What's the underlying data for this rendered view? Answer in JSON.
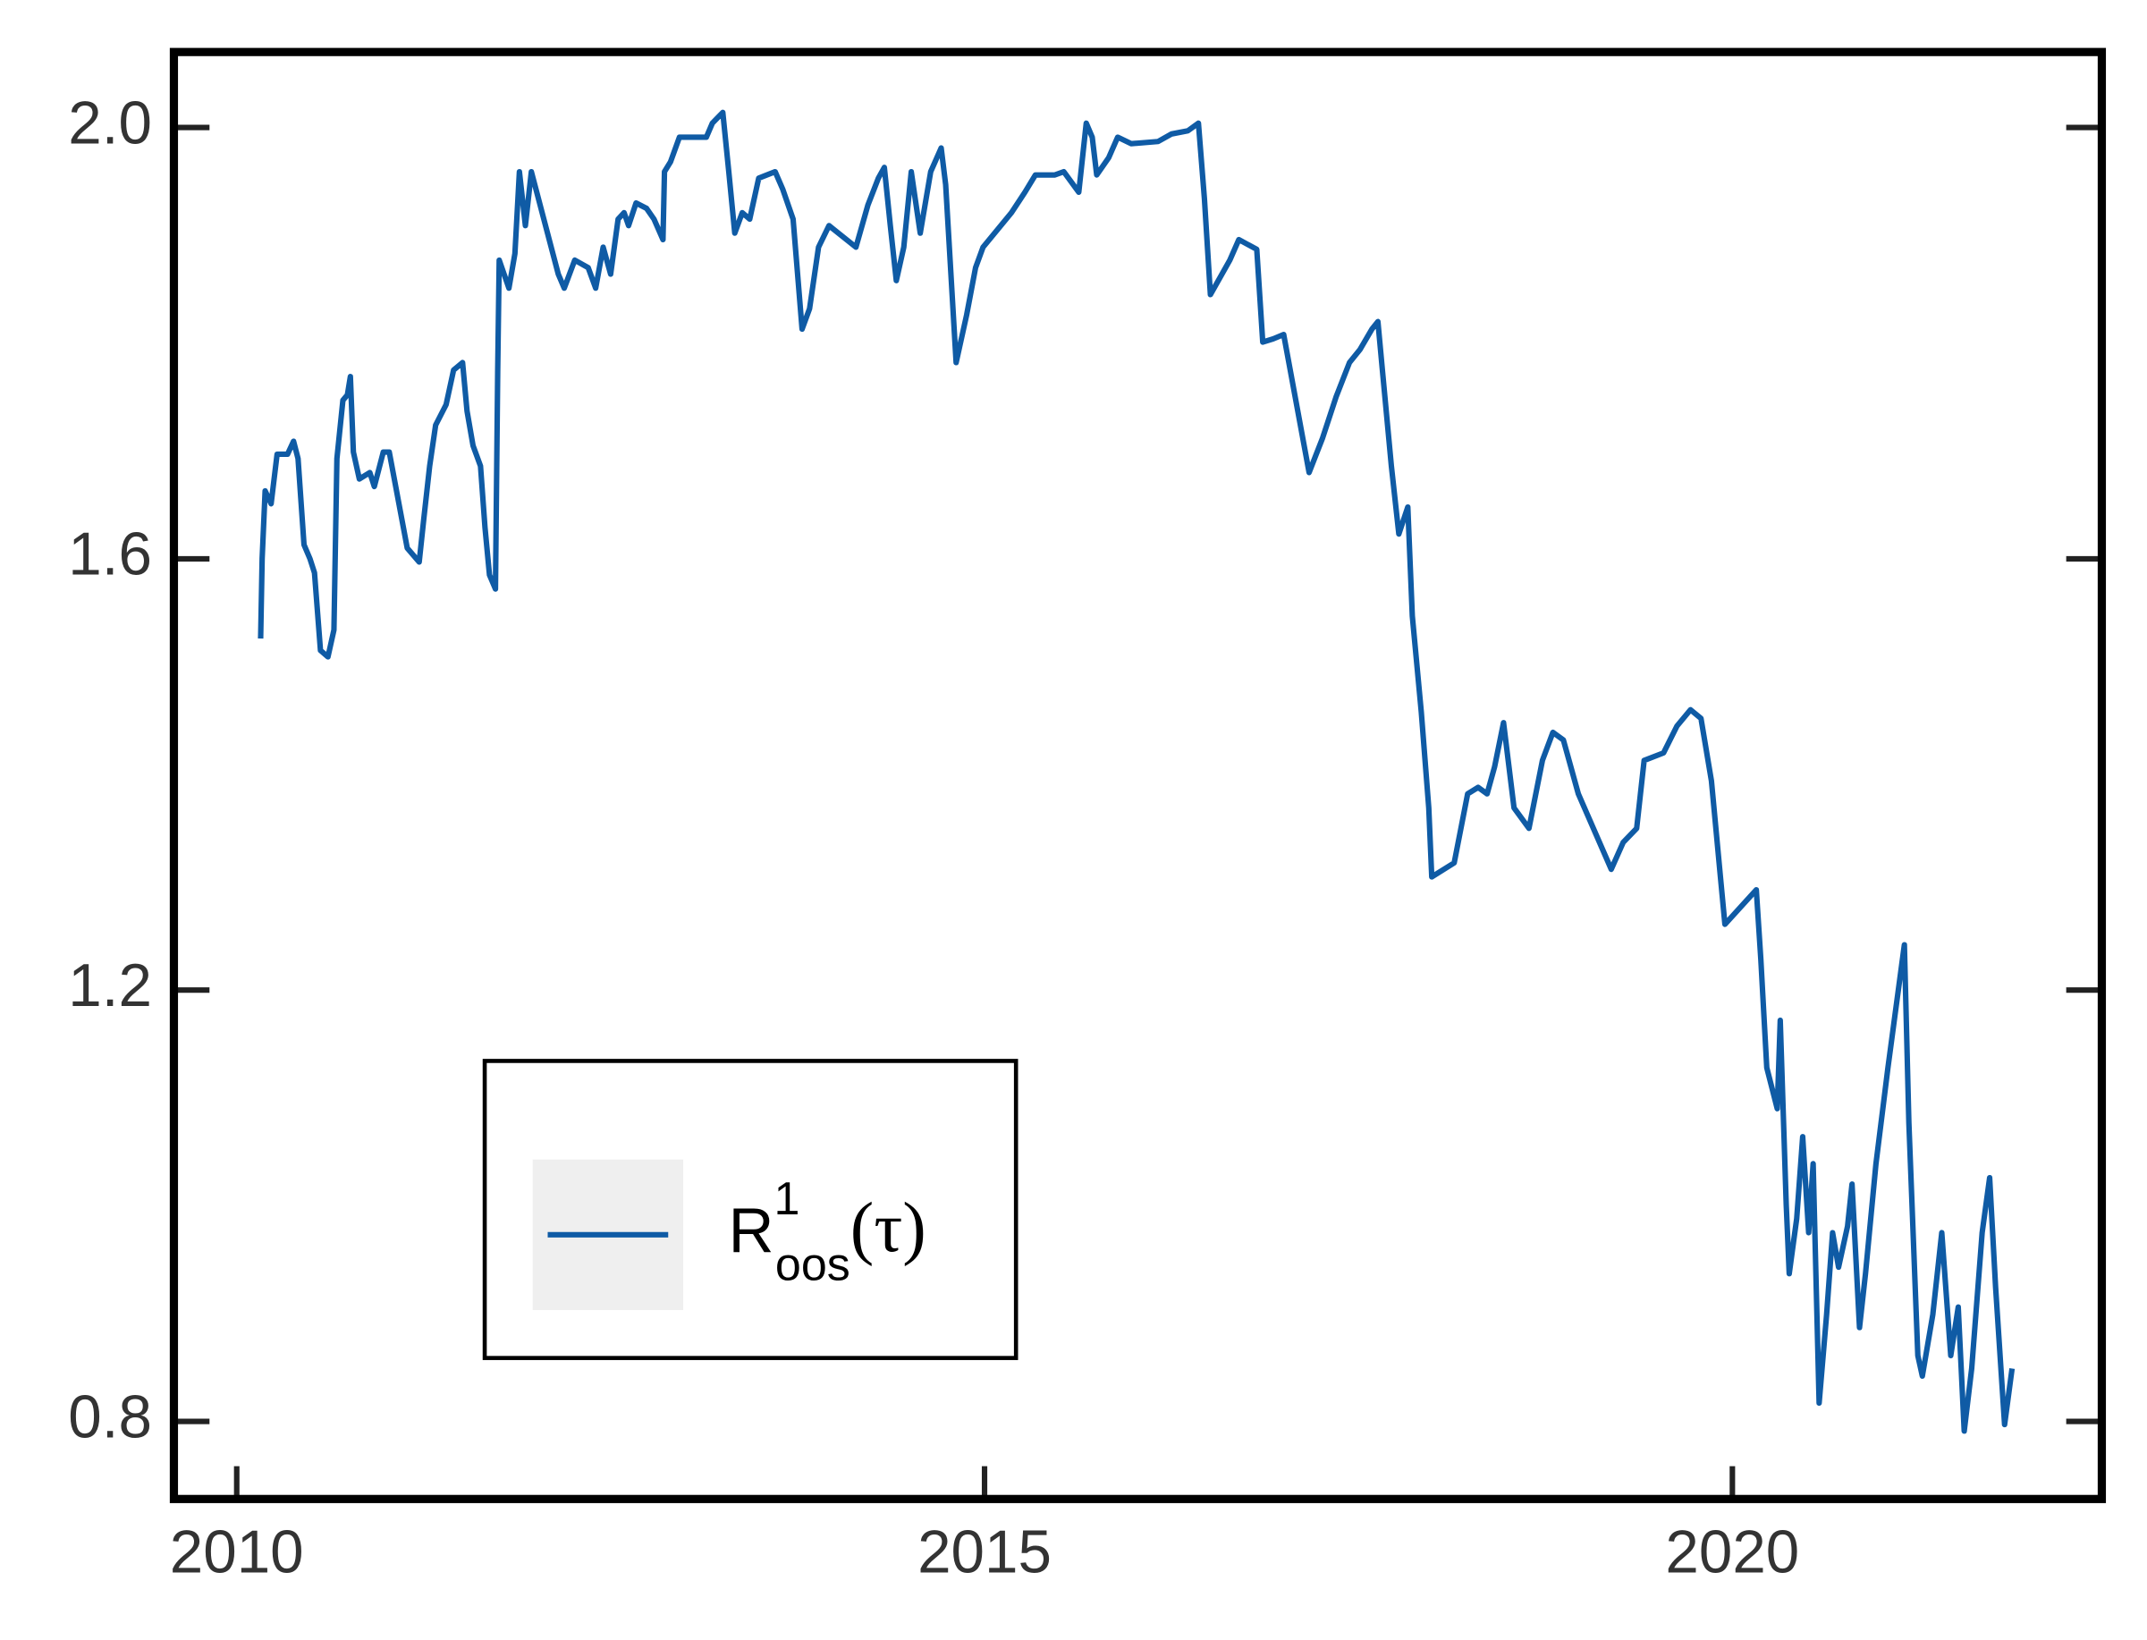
{
  "chart_data": {
    "type": "line",
    "x": [
      2010.16,
      2010.17,
      2010.19,
      2010.23,
      2010.27,
      2010.34,
      2010.38,
      2010.41,
      2010.45,
      2010.49,
      2010.52,
      2010.56,
      2010.61,
      2010.65,
      2010.67,
      2010.71,
      2010.74,
      2010.76,
      2010.78,
      2010.82,
      2010.89,
      2010.92,
      2010.98,
      2011.02,
      2011.14,
      2011.22,
      2011.25,
      2011.29,
      2011.33,
      2011.4,
      2011.45,
      2011.51,
      2011.54,
      2011.58,
      2011.63,
      2011.66,
      2011.69,
      2011.73,
      2011.745,
      2011.755,
      2011.82,
      2011.86,
      2011.89,
      2011.93,
      2011.97,
      2012.15,
      2012.19,
      2012.26,
      2012.35,
      2012.4,
      2012.45,
      2012.5,
      2012.55,
      2012.59,
      2012.62,
      2012.67,
      2012.74,
      2012.79,
      2012.85,
      2012.86,
      2012.9,
      2012.96,
      2013.14,
      2013.18,
      2013.25,
      2013.29,
      2013.33,
      2013.38,
      2013.43,
      2013.49,
      2013.6,
      2013.65,
      2013.72,
      2013.78,
      2013.83,
      2013.89,
      2013.96,
      2014.14,
      2014.22,
      2014.29,
      2014.33,
      2014.37,
      2014.41,
      2014.46,
      2014.51,
      2014.57,
      2014.64,
      2014.71,
      2014.74,
      2014.81,
      2014.88,
      2014.94,
      2014.99,
      2015.18,
      2015.27,
      2015.34,
      2015.47,
      2015.53,
      2015.63,
      2015.68,
      2015.72,
      2015.75,
      2015.83,
      2015.89,
      2015.98,
      2016.16,
      2016.25,
      2016.36,
      2016.43,
      2016.47,
      2016.51,
      2016.64,
      2016.7,
      2016.82,
      2016.86,
      2016.93,
      2017.0,
      2017.17,
      2017.26,
      2017.35,
      2017.44,
      2017.51,
      2017.59,
      2017.63,
      2017.66,
      2017.72,
      2017.77,
      2017.83,
      2017.86,
      2017.92,
      2017.97,
      2017.99,
      2018.14,
      2018.23,
      2018.3,
      2018.36,
      2018.41,
      2018.47,
      2018.54,
      2018.64,
      2018.73,
      2018.8,
      2018.87,
      2018.97,
      2019.19,
      2019.27,
      2019.36,
      2019.41,
      2019.54,
      2019.63,
      2019.72,
      2019.79,
      2019.86,
      2019.92,
      2019.95,
      2020.16,
      2020.19,
      2020.23,
      2020.3,
      2020.32,
      2020.36,
      2020.38,
      2020.43,
      2020.47,
      2020.51,
      2020.54,
      2020.58,
      2020.63,
      2020.67,
      2020.71,
      2020.77,
      2020.8,
      2020.85,
      2020.89,
      2020.96,
      2021.04,
      2021.15,
      2021.18,
      2021.24,
      2021.27,
      2021.34,
      2021.4,
      2021.46,
      2021.51,
      2021.55,
      2021.6,
      2021.67,
      2021.72,
      2021.76,
      2021.82,
      2021.87
    ],
    "series": [
      {
        "name": "R1oos(τ)",
        "color": "#0f5ba5",
        "values": [
          1.526,
          1.6,
          1.663,
          1.651,
          1.697,
          1.697,
          1.709,
          1.693,
          1.613,
          1.6,
          1.587,
          1.515,
          1.509,
          1.534,
          1.693,
          1.747,
          1.752,
          1.769,
          1.699,
          1.674,
          1.68,
          1.667,
          1.699,
          1.699,
          1.61,
          1.597,
          1.636,
          1.686,
          1.724,
          1.743,
          1.775,
          1.782,
          1.737,
          1.705,
          1.686,
          1.629,
          1.585,
          1.572,
          1.775,
          1.877,
          1.851,
          1.883,
          1.959,
          1.909,
          1.959,
          1.864,
          1.851,
          1.877,
          1.87,
          1.851,
          1.889,
          1.864,
          1.915,
          1.921,
          1.909,
          1.93,
          1.925,
          1.915,
          1.896,
          1.959,
          1.968,
          1.991,
          1.991,
          2.004,
          2.014,
          1.959,
          1.902,
          1.921,
          1.915,
          1.953,
          1.959,
          1.943,
          1.915,
          1.813,
          1.832,
          1.889,
          1.909,
          1.889,
          1.928,
          1.953,
          1.963,
          1.909,
          1.858,
          1.889,
          1.959,
          1.902,
          1.959,
          1.981,
          1.947,
          1.782,
          1.826,
          1.87,
          1.889,
          1.921,
          1.94,
          1.956,
          1.956,
          1.959,
          1.94,
          2.004,
          1.991,
          1.956,
          1.972,
          1.991,
          1.985,
          1.987,
          1.994,
          1.997,
          2.004,
          1.934,
          1.845,
          1.877,
          1.896,
          1.887,
          1.801,
          1.804,
          1.808,
          1.68,
          1.712,
          1.75,
          1.782,
          1.794,
          1.813,
          1.82,
          1.775,
          1.686,
          1.623,
          1.648,
          1.547,
          1.458,
          1.369,
          1.305,
          1.318,
          1.382,
          1.388,
          1.382,
          1.407,
          1.448,
          1.369,
          1.35,
          1.413,
          1.439,
          1.432,
          1.382,
          1.312,
          1.337,
          1.35,
          1.413,
          1.42,
          1.445,
          1.46,
          1.452,
          1.394,
          1.305,
          1.261,
          1.293,
          1.229,
          1.128,
          1.09,
          1.172,
          1.001,
          0.937,
          0.988,
          1.064,
          0.975,
          1.039,
          0.817,
          0.899,
          0.975,
          0.943,
          0.981,
          1.02,
          0.887,
          0.937,
          1.039,
          1.128,
          1.242,
          1.077,
          0.861,
          0.842,
          0.899,
          0.975,
          0.861,
          0.906,
          0.791,
          0.849,
          0.975,
          1.026,
          0.924,
          0.797,
          0.849
        ]
      }
    ],
    "xlim": [
      2009.58,
      2022.47
    ],
    "xticks": [
      2010,
      2015,
      2020
    ],
    "ylim": [
      0.728,
      2.07
    ],
    "yticks": [
      0.8,
      1.2,
      1.6,
      {
        "value": 2,
        "label": "2.0"
      }
    ],
    "legend": "lower left",
    "grid": false
  }
}
